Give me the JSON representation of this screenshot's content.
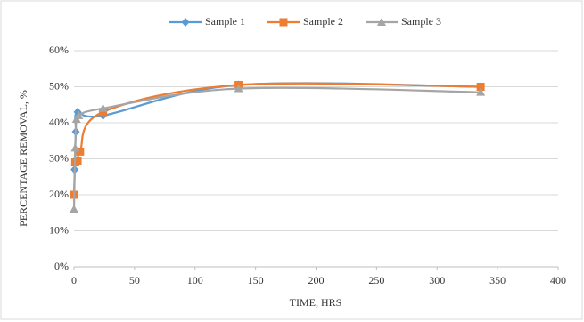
{
  "chart_data": {
    "type": "line",
    "xlabel": "TIME, HRS",
    "ylabel": "PERCENTAGE REMOVAL, %",
    "xlim": [
      0,
      400
    ],
    "xticks": [
      0,
      50,
      100,
      150,
      200,
      250,
      300,
      350,
      400
    ],
    "ylim": [
      0,
      60
    ],
    "yticks": [
      {
        "value": 0,
        "label": "0%"
      },
      {
        "value": 10,
        "label": "10%"
      },
      {
        "value": 20,
        "label": "20%"
      },
      {
        "value": 30,
        "label": "30%"
      },
      {
        "value": 40,
        "label": "40%"
      },
      {
        "value": 50,
        "label": "50%"
      },
      {
        "value": 60,
        "label": "60%"
      }
    ],
    "grid": true,
    "legend": "top",
    "smooth": true,
    "series": [
      {
        "name": "Sample 1",
        "color": "#5b9bd5",
        "marker": "diamond",
        "x": [
          0.5,
          1.5,
          3,
          24,
          136,
          336
        ],
        "values": [
          27,
          37.5,
          43,
          42,
          50.5,
          50
        ]
      },
      {
        "name": "Sample 2",
        "color": "#ed7d31",
        "marker": "square",
        "x": [
          0,
          1,
          3,
          5,
          24,
          136,
          336
        ],
        "values": [
          20,
          29,
          29.5,
          32,
          43,
          50.5,
          50
        ]
      },
      {
        "name": "Sample 3",
        "color": "#a5a5a5",
        "marker": "triangle",
        "x": [
          0,
          1,
          2,
          4,
          24,
          136,
          336
        ],
        "values": [
          16,
          33,
          41,
          42,
          44,
          49.5,
          48.5
        ]
      }
    ]
  }
}
